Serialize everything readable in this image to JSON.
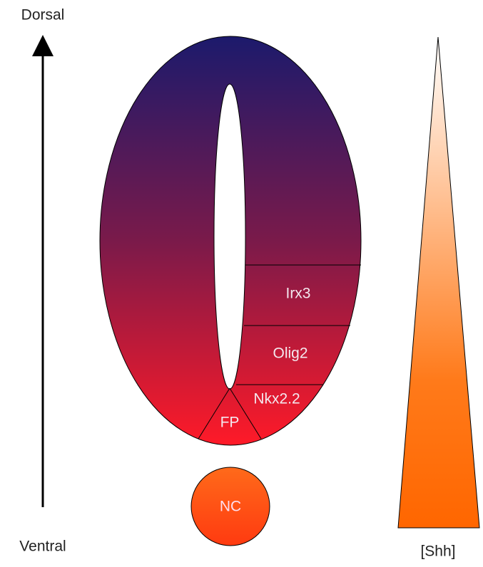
{
  "axis": {
    "top_label": "Dorsal",
    "bottom_label": "Ventral"
  },
  "domains": [
    "Irx3",
    "Olig2",
    "Nkx2.2",
    "FP"
  ],
  "notochord": "NC",
  "gradient_label": "[Shh]"
}
